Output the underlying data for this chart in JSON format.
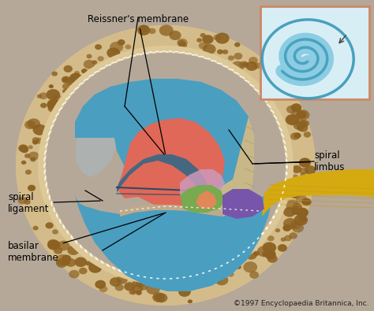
{
  "bg_color": "#b5a898",
  "bone_outer_color": "#d4bc8a",
  "bone_spot_color": "#8b6020",
  "bone_inner_color": "#ddc898",
  "fluid_blue": "#4a9ec0",
  "scala_media_red": "#e06858",
  "reissner_blue_dark": "#2a6888",
  "spiral_lig_cream": "#c8b888",
  "spiral_lig_stripe": "#a89878",
  "organ_green": "#78aa50",
  "organ_purple": "#7755aa",
  "organ_pink": "#cc99bb",
  "organ_orange": "#e08858",
  "nerve_yellow": "#d4aa10",
  "nerve_yellow2": "#c89a18",
  "white_dot_line": "#ffffff",
  "inset_bg": "#d8eef5",
  "inset_border": "#cc8866",
  "inset_spiral": "#5ab8d8",
  "inset_spiral_dark": "#3898b8",
  "copyright_text": "©1997 Encyclopaedia Britannica, Inc.",
  "labels": {
    "reissners_membrane": "Reissner's membrane",
    "spiral_limbus": "spiral\nlimbus",
    "spiral_ligament": "spiral\nligament",
    "basilar_membrane": "basilar\nmembrane"
  },
  "label_fontsize": 8.5,
  "copyright_fontsize": 6.5
}
